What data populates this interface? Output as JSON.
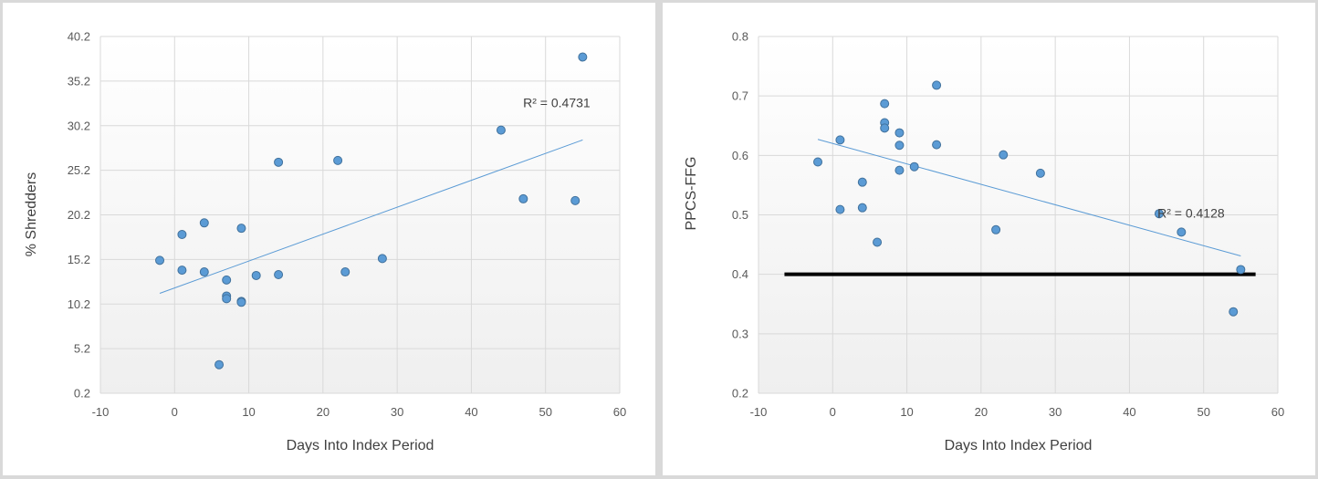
{
  "chart_data": [
    {
      "type": "scatter",
      "title": "",
      "xlabel": "Days Into Index Period",
      "ylabel": "% Shredders",
      "xlim": [
        -10,
        60
      ],
      "ylim": [
        0.2,
        40.2
      ],
      "x_ticks": [
        -10,
        0,
        10,
        20,
        30,
        40,
        50,
        60
      ],
      "x_tick_labels": [
        "-10",
        "0",
        "10",
        "20",
        "30",
        "40",
        "50",
        "60"
      ],
      "y_ticks": [
        0.2,
        5.2,
        10.2,
        15.2,
        20.2,
        25.2,
        30.2,
        35.2,
        40.2
      ],
      "y_tick_labels": [
        "0.2",
        "5.2",
        "10.2",
        "15.2",
        "20.2",
        "25.2",
        "30.2",
        "35.2",
        "40.2"
      ],
      "grid": true,
      "series": [
        {
          "name": "% Shredders",
          "color": "#5b9bd5",
          "points": [
            {
              "x": -2,
              "y": 15.1
            },
            {
              "x": 1,
              "y": 18.0
            },
            {
              "x": 1,
              "y": 14.0
            },
            {
              "x": 4,
              "y": 19.3
            },
            {
              "x": 4,
              "y": 13.8
            },
            {
              "x": 6,
              "y": 3.4
            },
            {
              "x": 7,
              "y": 12.9
            },
            {
              "x": 7,
              "y": 11.1
            },
            {
              "x": 7,
              "y": 10.8
            },
            {
              "x": 9,
              "y": 18.7
            },
            {
              "x": 9,
              "y": 10.5
            },
            {
              "x": 9,
              "y": 10.4
            },
            {
              "x": 11,
              "y": 13.4
            },
            {
              "x": 14,
              "y": 26.1
            },
            {
              "x": 14,
              "y": 13.5
            },
            {
              "x": 22,
              "y": 26.3
            },
            {
              "x": 23,
              "y": 13.8
            },
            {
              "x": 28,
              "y": 15.3
            },
            {
              "x": 44,
              "y": 29.7
            },
            {
              "x": 47,
              "y": 22.0
            },
            {
              "x": 54,
              "y": 21.8
            },
            {
              "x": 55,
              "y": 37.9
            }
          ]
        }
      ],
      "trendline": {
        "type": "linear",
        "x": [
          -2,
          55
        ],
        "y": [
          11.4,
          28.6
        ],
        "color": "#5b9bd5"
      },
      "annotations": [
        {
          "text": "R² = 0.4731",
          "x": 51.5,
          "y": 32.8
        }
      ]
    },
    {
      "type": "scatter",
      "title": "",
      "xlabel": "Days Into Index Period",
      "ylabel": "PPCS-FFG",
      "xlim": [
        -10,
        60
      ],
      "ylim": [
        0.2,
        0.8
      ],
      "x_ticks": [
        -10,
        0,
        10,
        20,
        30,
        40,
        50,
        60
      ],
      "x_tick_labels": [
        "-10",
        "0",
        "10",
        "20",
        "30",
        "40",
        "50",
        "60"
      ],
      "y_ticks": [
        0.2,
        0.3,
        0.4,
        0.5,
        0.6,
        0.7,
        0.8
      ],
      "y_tick_labels": [
        "0.2",
        "0.3",
        "0.4",
        "0.5",
        "0.6",
        "0.7",
        "0.8"
      ],
      "grid": true,
      "series": [
        {
          "name": "PPCS-FFG",
          "color": "#5b9bd5",
          "points": [
            {
              "x": -2,
              "y": 0.589
            },
            {
              "x": 1,
              "y": 0.626
            },
            {
              "x": 1,
              "y": 0.509
            },
            {
              "x": 4,
              "y": 0.555
            },
            {
              "x": 4,
              "y": 0.512
            },
            {
              "x": 6,
              "y": 0.454
            },
            {
              "x": 7,
              "y": 0.687
            },
            {
              "x": 7,
              "y": 0.655
            },
            {
              "x": 7,
              "y": 0.646
            },
            {
              "x": 9,
              "y": 0.638
            },
            {
              "x": 9,
              "y": 0.617
            },
            {
              "x": 9,
              "y": 0.575
            },
            {
              "x": 11,
              "y": 0.581
            },
            {
              "x": 14,
              "y": 0.718
            },
            {
              "x": 14,
              "y": 0.618
            },
            {
              "x": 22,
              "y": 0.475
            },
            {
              "x": 23,
              "y": 0.601
            },
            {
              "x": 28,
              "y": 0.57
            },
            {
              "x": 44,
              "y": 0.502
            },
            {
              "x": 47,
              "y": 0.471
            },
            {
              "x": 54,
              "y": 0.337
            },
            {
              "x": 55,
              "y": 0.408
            }
          ]
        }
      ],
      "trendline": {
        "type": "linear",
        "x": [
          -2,
          55
        ],
        "y": [
          0.627,
          0.431
        ],
        "color": "#5b9bd5"
      },
      "reference_line": {
        "y": 0.4,
        "x": [
          -6.5,
          57
        ],
        "color": "#000000"
      },
      "annotations": [
        {
          "text": "R² = 0.4128",
          "x": 48.3,
          "y": 0.503
        }
      ]
    }
  ]
}
